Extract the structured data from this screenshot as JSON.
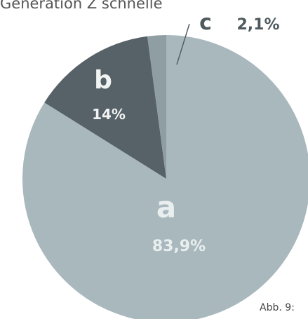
{
  "chart_data": {
    "type": "pie",
    "title": "Generation Z schnelle",
    "categories": [
      "a",
      "b",
      "c"
    ],
    "values": [
      83.9,
      14,
      2.1
    ],
    "value_labels": [
      "83,9%",
      "14%",
      "2,1%"
    ],
    "colors": [
      "#a9b8bd",
      "#566267",
      "#8f9ea3"
    ],
    "caption": "Abb. 9:"
  }
}
